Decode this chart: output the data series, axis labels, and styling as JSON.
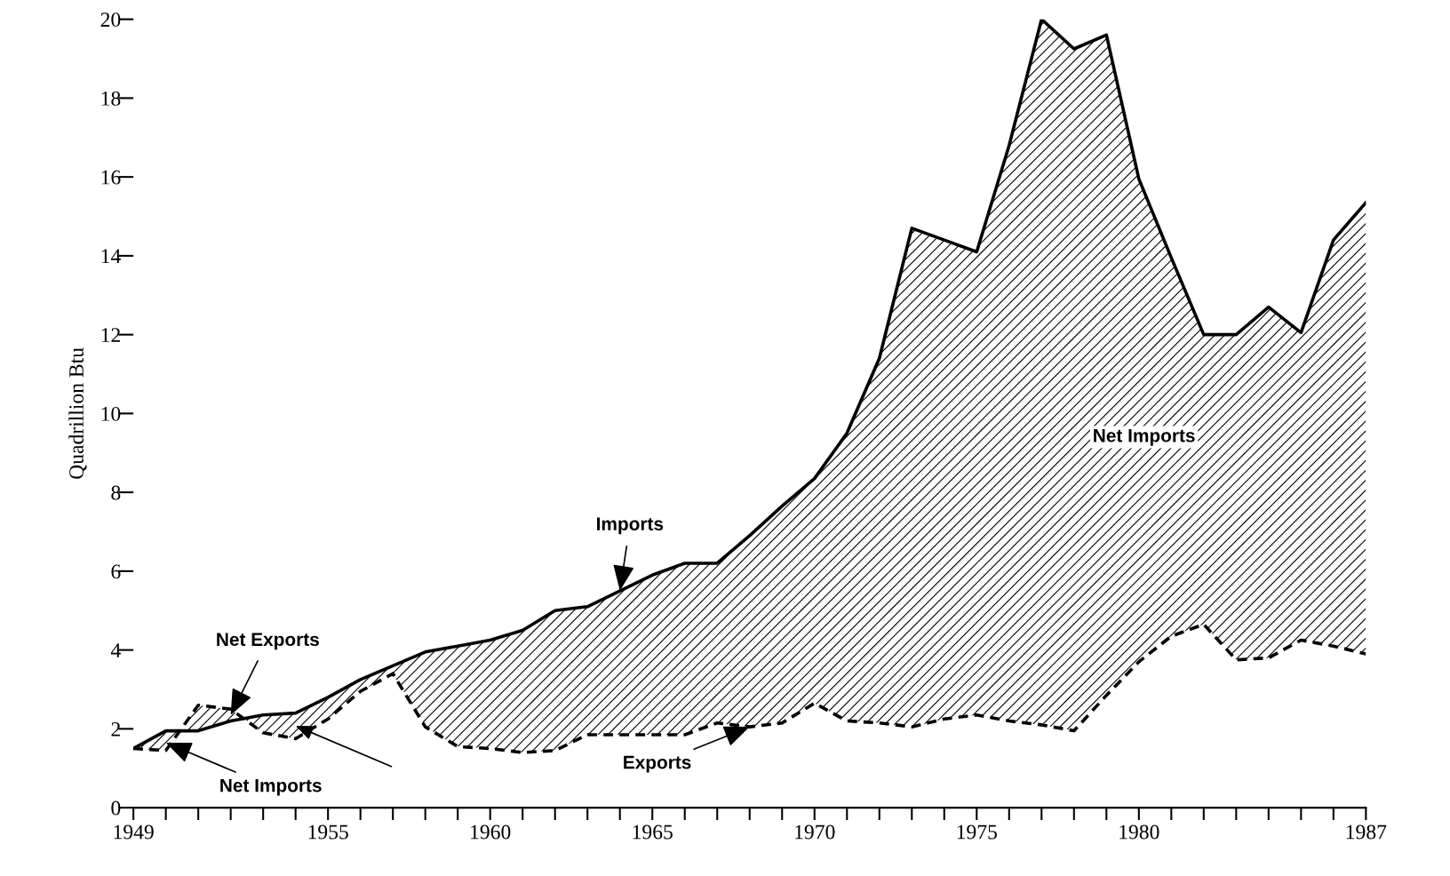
{
  "chart_data": {
    "type": "line",
    "ylabel": "Quadrillion Btu",
    "x": [
      1949,
      1950,
      1951,
      1952,
      1953,
      1954,
      1955,
      1956,
      1957,
      1958,
      1959,
      1960,
      1961,
      1962,
      1963,
      1964,
      1965,
      1966,
      1967,
      1968,
      1969,
      1970,
      1971,
      1972,
      1973,
      1974,
      1975,
      1976,
      1977,
      1978,
      1979,
      1980,
      1981,
      1982,
      1983,
      1984,
      1985,
      1986,
      1987
    ],
    "series": [
      {
        "color": "#000000",
        "line_style": "solid",
        "values": [
          1.5,
          1.95,
          1.95,
          2.2,
          2.35,
          2.4,
          2.8,
          3.25,
          3.6,
          3.95,
          4.1,
          4.25,
          4.5,
          5.0,
          5.1,
          5.5,
          5.9,
          6.2,
          6.2,
          6.9,
          7.65,
          8.35,
          9.5,
          11.4,
          14.7,
          14.4,
          14.1,
          16.8,
          20.0,
          19.25,
          19.6,
          15.95,
          13.95,
          12.0,
          12.0,
          12.7,
          12.05,
          14.4,
          15.35
        ],
        "upper": [
          1.5,
          1.95,
          1.95,
          2.2,
          2.35,
          2.4,
          2.8,
          3.25,
          3.6,
          3.95,
          4.1,
          4.25,
          4.5,
          5.0,
          5.1,
          5.5,
          5.9,
          6.2,
          6.2,
          6.9,
          7.65,
          8.35,
          9.5,
          11.4,
          14.7,
          14.4,
          14.1,
          16.8,
          20.0,
          19.25,
          19.6,
          15.95,
          13.95,
          12.0,
          12.0,
          12.7,
          12.05,
          14.4,
          15.35
        ],
        "lower": [
          1.5,
          1.45,
          2.6,
          2.5,
          1.9,
          1.75,
          2.25,
          2.95,
          3.4,
          2.05,
          1.55,
          1.5,
          1.4,
          1.45,
          1.85,
          1.85,
          1.85,
          1.85,
          2.15,
          2.05,
          2.15,
          2.65,
          2.2,
          2.15,
          2.05,
          2.25,
          2.35,
          2.2,
          2.1,
          1.95,
          2.85,
          3.7,
          4.35,
          4.65,
          3.75,
          3.8,
          4.25,
          4.1,
          3.9
        ]
      },
      {
        "color": "#000000",
        "line_style": "dashed",
        "values": [
          1.5,
          1.45,
          2.6,
          2.5,
          1.9,
          1.75,
          2.25,
          2.95,
          3.4,
          2.05,
          1.55,
          1.5,
          1.4,
          1.45,
          1.85,
          1.85,
          1.85,
          1.85,
          2.15,
          2.05,
          2.15,
          2.65,
          2.2,
          2.15,
          2.05,
          2.25,
          2.35,
          2.2,
          2.1,
          1.95,
          2.85,
          3.7,
          4.35,
          4.65,
          3.75,
          3.8,
          4.25,
          4.1,
          3.9
        ]
      }
    ],
    "xlim": [
      1949,
      1987
    ],
    "xticks": [
      1949,
      1955,
      1960,
      1965,
      1970,
      1975,
      1980,
      1987
    ],
    "ylim": [
      0,
      20
    ],
    "yticks": [
      0,
      2,
      4,
      6,
      8,
      10,
      12,
      14,
      16,
      18,
      20
    ],
    "grid": false,
    "legend": false,
    "annotations": [
      {
        "text": "Imports",
        "x": 1964,
        "y": 5.5
      },
      {
        "text": "Exports",
        "x": 1968,
        "y": 2.05
      },
      {
        "text": "Net Exports",
        "x": 1952,
        "y": 2.35
      },
      {
        "text": "Net Imports",
        "x": 1950,
        "y": 1.65
      },
      "Net Imports"
    ]
  }
}
